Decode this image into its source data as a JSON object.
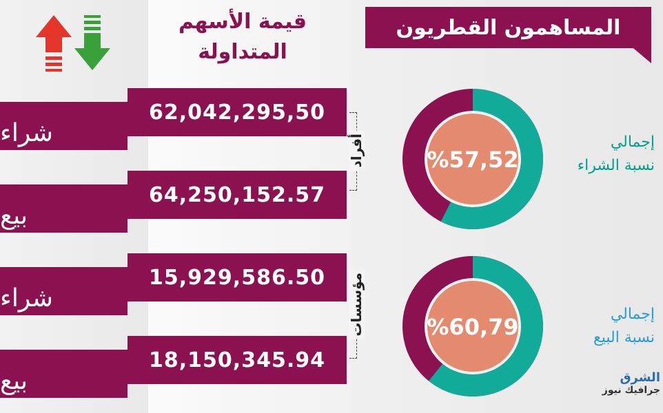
{
  "header": {
    "title": "المساهمون القطريون"
  },
  "values_header": {
    "line1": "قيمة الأسهم",
    "line2": "المتداولة"
  },
  "rows": [
    {
      "label": "شراء",
      "value": "62,042,295,50"
    },
    {
      "label": "بيع",
      "value": "64,250,152.57"
    },
    {
      "label": "شراء",
      "value": "15,929,586.50"
    },
    {
      "label": "بيع",
      "value": "18,150,345.94"
    }
  ],
  "groups": {
    "individuals": "أفراد",
    "institutions": "مؤسسات"
  },
  "donuts": [
    {
      "percent_label": "%57,52",
      "caption_line1": "إجمالي",
      "caption_line2": "نسبة الشراء"
    },
    {
      "percent_label": "%60,79",
      "caption_line1": "إجمالي",
      "caption_line2": "نسبة البيع"
    }
  ],
  "logo": {
    "main": "الشرق",
    "sub": "جرافيك نيوز"
  },
  "colors": {
    "maroon": "#8b1150",
    "teal": "#12aa98",
    "salmon": "#e48a6e",
    "arrow_up": "#e4352a",
    "arrow_down": "#3aa13a",
    "buy_caption": "#00a08a",
    "sell_caption": "#2b9bd6"
  },
  "icons": [
    "arrow-up-icon",
    "arrow-down-icon"
  ],
  "chart_data": [
    {
      "type": "pie",
      "title": "",
      "categories": [
        "",
        ""
      ],
      "values": [
        57.52,
        42.48
      ],
      "label": "%57,52"
    },
    {
      "type": "pie",
      "title": "",
      "categories": [
        "",
        ""
      ],
      "values": [
        60.79,
        39.21
      ],
      "label": "%60,79"
    }
  ]
}
